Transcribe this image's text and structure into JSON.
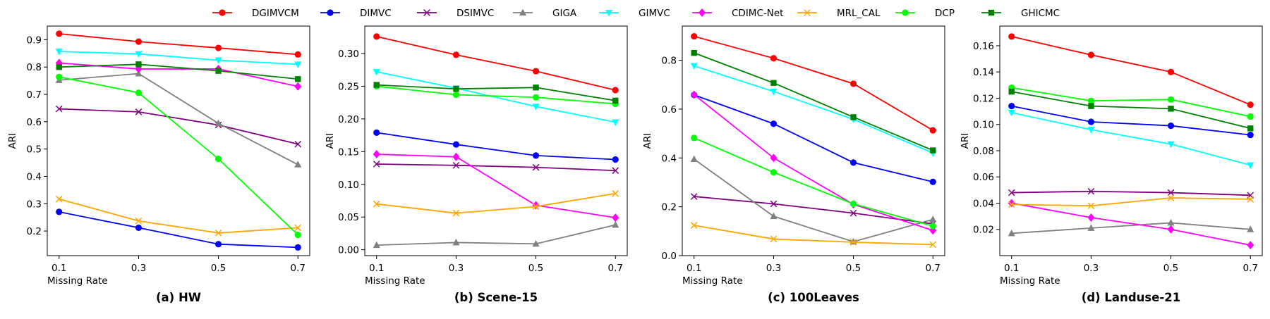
{
  "legend": [
    {
      "name": "DGIMVCM",
      "color": "#ff0000",
      "marker": "circle"
    },
    {
      "name": "DIMVC",
      "color": "#0000ff",
      "marker": "circle"
    },
    {
      "name": "DSIMVC",
      "color": "#800080",
      "marker": "x"
    },
    {
      "name": "GIGA",
      "color": "#808080",
      "marker": "triangle-up"
    },
    {
      "name": "GIMVC",
      "color": "#00ffff",
      "marker": "triangle-down"
    },
    {
      "name": "CDIMC-Net",
      "color": "#ff00ff",
      "marker": "diamond"
    },
    {
      "name": "MRL_CAL",
      "color": "#ffa500",
      "marker": "x"
    },
    {
      "name": "DCP",
      "color": "#00ff00",
      "marker": "circle"
    },
    {
      "name": "GHICMC",
      "color": "#008000",
      "marker": "square"
    }
  ],
  "chart_data": [
    {
      "type": "line",
      "title": "(a) HW",
      "xlabel": "Missing Rate",
      "ylabel": "ARI",
      "x": [
        "0.1",
        "0.3",
        "0.5",
        "0.7"
      ],
      "ylim": [
        0.11,
        0.95
      ],
      "yticks": [
        0.2,
        0.3,
        0.4,
        0.5,
        0.6,
        0.7,
        0.8,
        0.9
      ],
      "ytick_labels": [
        "0.2",
        "0.3",
        "0.4",
        "0.5",
        "0.6",
        "0.7",
        "0.8",
        "0.9"
      ],
      "series": [
        {
          "name": "DGIMVCM",
          "values": [
            0.922,
            0.893,
            0.87,
            0.846
          ]
        },
        {
          "name": "DIMVC",
          "values": [
            0.27,
            0.212,
            0.152,
            0.14
          ]
        },
        {
          "name": "DSIMVC",
          "values": [
            0.647,
            0.636,
            0.588,
            0.518
          ]
        },
        {
          "name": "GIGA",
          "values": [
            0.752,
            0.776,
            0.594,
            0.443
          ]
        },
        {
          "name": "GIMVC",
          "values": [
            0.857,
            0.848,
            0.825,
            0.81
          ]
        },
        {
          "name": "CDIMC-Net",
          "values": [
            0.815,
            0.793,
            0.793,
            0.729
          ]
        },
        {
          "name": "MRL_CAL",
          "values": [
            0.317,
            0.237,
            0.193,
            0.212
          ]
        },
        {
          "name": "DCP",
          "values": [
            0.764,
            0.706,
            0.464,
            0.186
          ]
        },
        {
          "name": "GHICMC",
          "values": [
            0.8,
            0.81,
            0.786,
            0.756
          ]
        }
      ]
    },
    {
      "type": "line",
      "title": "(b) Scene-15",
      "xlabel": "Missing Rate",
      "ylabel": "ARI",
      "x": [
        "0.1",
        "0.3",
        "0.5",
        "0.7"
      ],
      "ylim": [
        -0.009,
        0.342
      ],
      "yticks": [
        0.0,
        0.05,
        0.1,
        0.15,
        0.2,
        0.25,
        0.3
      ],
      "ytick_labels": [
        "0.00",
        "0.05",
        "0.10",
        "0.15",
        "0.20",
        "0.25",
        "0.30"
      ],
      "series": [
        {
          "name": "DGIMVCM",
          "values": [
            0.326,
            0.298,
            0.273,
            0.244
          ]
        },
        {
          "name": "DIMVC",
          "values": [
            0.179,
            0.161,
            0.144,
            0.138
          ]
        },
        {
          "name": "DSIMVC",
          "values": [
            0.131,
            0.129,
            0.126,
            0.121
          ]
        },
        {
          "name": "GIGA",
          "values": [
            0.007,
            0.011,
            0.009,
            0.038
          ]
        },
        {
          "name": "GIMVC",
          "values": [
            0.272,
            0.247,
            0.219,
            0.195
          ]
        },
        {
          "name": "CDIMC-Net",
          "values": [
            0.146,
            0.142,
            0.068,
            0.049
          ]
        },
        {
          "name": "MRL_CAL",
          "values": [
            0.07,
            0.056,
            0.066,
            0.086
          ]
        },
        {
          "name": "DCP",
          "values": [
            0.25,
            0.237,
            0.233,
            0.223
          ]
        },
        {
          "name": "GHICMC",
          "values": [
            0.252,
            0.246,
            0.248,
            0.228
          ]
        }
      ]
    },
    {
      "type": "line",
      "title": "(c) 100Leaves",
      "xlabel": "Missing Rate",
      "ylabel": "ARI",
      "x": [
        "0.1",
        "0.3",
        "0.5",
        "0.7"
      ],
      "ylim": [
        0.0,
        0.94
      ],
      "yticks": [
        0.0,
        0.2,
        0.4,
        0.6,
        0.8
      ],
      "ytick_labels": [
        "0.0",
        "0.2",
        "0.4",
        "0.6",
        "0.8"
      ],
      "series": [
        {
          "name": "DGIMVCM",
          "values": [
            0.898,
            0.808,
            0.704,
            0.513
          ]
        },
        {
          "name": "DIMVC",
          "values": [
            0.658,
            0.54,
            0.381,
            0.302
          ]
        },
        {
          "name": "DSIMVC",
          "values": [
            0.242,
            0.212,
            0.174,
            0.13
          ]
        },
        {
          "name": "GIGA",
          "values": [
            0.395,
            0.161,
            0.057,
            0.148
          ]
        },
        {
          "name": "GIMVC",
          "values": [
            0.777,
            0.672,
            0.558,
            0.42
          ]
        },
        {
          "name": "CDIMC-Net",
          "values": [
            0.659,
            0.4,
            0.21,
            0.103
          ]
        },
        {
          "name": "MRL_CAL",
          "values": [
            0.124,
            0.068,
            0.055,
            0.045
          ]
        },
        {
          "name": "DCP",
          "values": [
            0.482,
            0.341,
            0.212,
            0.121
          ]
        },
        {
          "name": "GHICMC",
          "values": [
            0.83,
            0.707,
            0.567,
            0.431
          ]
        }
      ]
    },
    {
      "type": "line",
      "title": "(d) Landuse-21",
      "xlabel": "Missing Rate",
      "ylabel": "ARI",
      "x": [
        "0.1",
        "0.3",
        "0.5",
        "0.7"
      ],
      "ylim": [
        0.0,
        0.175
      ],
      "yticks": [
        0.02,
        0.04,
        0.06,
        0.08,
        0.1,
        0.12,
        0.14,
        0.16
      ],
      "ytick_labels": [
        "0.02",
        "0.04",
        "0.06",
        "0.08",
        "0.10",
        "0.12",
        "0.14",
        "0.16"
      ],
      "series": [
        {
          "name": "DGIMVCM",
          "values": [
            0.167,
            0.153,
            0.14,
            0.115
          ]
        },
        {
          "name": "DIMVC",
          "values": [
            0.114,
            0.102,
            0.099,
            0.092
          ]
        },
        {
          "name": "DSIMVC",
          "values": [
            0.048,
            0.049,
            0.048,
            0.046
          ]
        },
        {
          "name": "GIGA",
          "values": [
            0.017,
            0.021,
            0.025,
            0.02
          ]
        },
        {
          "name": "GIMVC",
          "values": [
            0.109,
            0.096,
            0.085,
            0.069
          ]
        },
        {
          "name": "CDIMC-Net",
          "values": [
            0.04,
            0.029,
            0.02,
            0.008
          ]
        },
        {
          "name": "MRL_CAL",
          "values": [
            0.039,
            0.038,
            0.044,
            0.043
          ]
        },
        {
          "name": "DCP",
          "values": [
            0.128,
            0.118,
            0.119,
            0.106
          ]
        },
        {
          "name": "GHICMC",
          "values": [
            0.125,
            0.114,
            0.112,
            0.097
          ]
        }
      ]
    }
  ]
}
